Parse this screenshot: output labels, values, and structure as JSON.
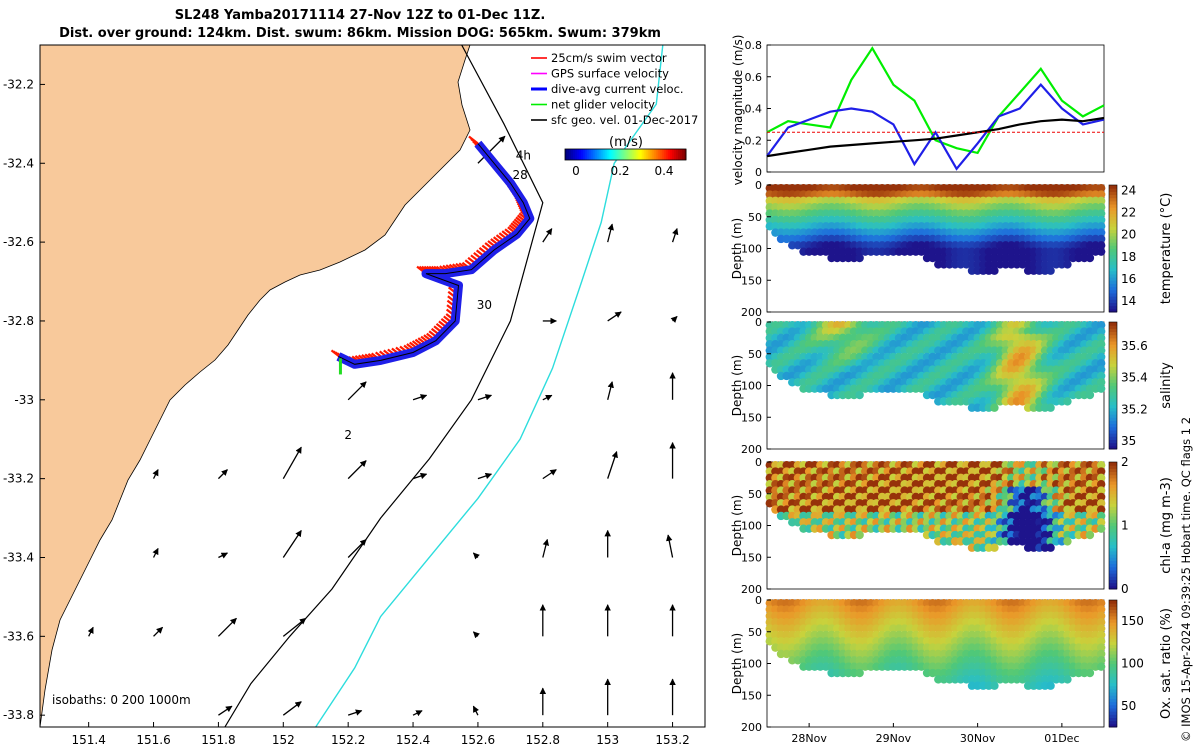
{
  "title": {
    "line1": "SL248 Yamba20171114 27-Nov 12Z to 01-Dec 11Z.",
    "line2": "Dist. over ground: 124km. Dist. swum: 86km. Mission DOG: 565km. Swum: 379km"
  },
  "credit": "© IMOS 15-Apr-2024 09:39:25 Hobart time. QC flags 1  2",
  "colors": {
    "land": "#f8c99b",
    "ocean": "#ffffff",
    "coast": "#000000",
    "track_red": "#ff1a00",
    "track_blue": "#1f1fe8",
    "glider_green": "#22dd22",
    "isobath_200": "#000000",
    "isobath_1000": "#2ddddd"
  },
  "chart_data": [
    {
      "type": "map",
      "xlim": [
        151.25,
        153.3
      ],
      "ylim": [
        -33.83,
        -32.1
      ],
      "x_ticks": [
        "151.4",
        "151.6",
        "151.8",
        "152",
        "152.2",
        "152.4",
        "152.6",
        "152.8",
        "153",
        "153.2"
      ],
      "x_tick_values": [
        151.4,
        151.6,
        151.8,
        152.0,
        152.2,
        152.4,
        152.6,
        152.8,
        153.0,
        153.2
      ],
      "y_ticks": [
        "-32.2",
        "-32.4",
        "-32.6",
        "-32.8",
        "-33",
        "-33.2",
        "-33.4",
        "-33.6",
        "-33.8"
      ],
      "y_tick_values": [
        -32.2,
        -32.4,
        -32.6,
        -32.8,
        -33.0,
        -33.2,
        -33.4,
        -33.6,
        -33.8
      ],
      "legend": [
        {
          "label": "25cm/s swim vector",
          "color": "#ff0000"
        },
        {
          "label": "GPS surface velocity",
          "color": "#ff00ff"
        },
        {
          "label": "dive-avg current veloc.",
          "color": "#0000ff"
        },
        {
          "label": "net glider velocity",
          "color": "#00ee00"
        },
        {
          "label": "sfc geo. vel. 01-Dec-2017",
          "color": "#000000"
        }
      ],
      "legend_placement": "top-right",
      "colorbar": {
        "label": "(m/s)",
        "ticks": [
          "0",
          "0.2",
          "0.4"
        ],
        "tick_values": [
          0,
          0.2,
          0.4
        ],
        "range": [
          -0.05,
          0.5
        ]
      },
      "isobaths_label": "isobaths: 0   200  1000m",
      "annotations": [
        {
          "text": "4h",
          "lon": 152.74,
          "lat": -32.39
        },
        {
          "text": "28",
          "lon": 152.73,
          "lat": -32.44
        },
        {
          "text": "30",
          "lon": 152.62,
          "lat": -32.77
        },
        {
          "text": "2",
          "lon": 152.2,
          "lat": -33.1
        }
      ],
      "glider_track": [
        [
          152.6,
          -32.35
        ],
        [
          152.65,
          -32.4
        ],
        [
          152.7,
          -32.45
        ],
        [
          152.74,
          -32.5
        ],
        [
          152.76,
          -32.54
        ],
        [
          152.72,
          -32.58
        ],
        [
          152.65,
          -32.62
        ],
        [
          152.58,
          -32.67
        ],
        [
          152.5,
          -32.68
        ],
        [
          152.44,
          -32.68
        ],
        [
          152.54,
          -32.71
        ],
        [
          152.53,
          -32.8
        ],
        [
          152.47,
          -32.85
        ],
        [
          152.4,
          -32.88
        ],
        [
          152.3,
          -32.9
        ],
        [
          152.22,
          -32.91
        ],
        [
          152.17,
          -32.89
        ]
      ],
      "geostrophic_vectors": [
        {
          "lon": 152.6,
          "lat": -32.4,
          "u": 0.3,
          "v": 0.3
        },
        {
          "lon": 152.8,
          "lat": -32.6,
          "u": 0.1,
          "v": 0.15
        },
        {
          "lon": 153.0,
          "lat": -32.6,
          "u": 0.05,
          "v": 0.2
        },
        {
          "lon": 153.2,
          "lat": -32.6,
          "u": 0.05,
          "v": 0.15
        },
        {
          "lon": 152.8,
          "lat": -32.8,
          "u": 0.15,
          "v": 0.0
        },
        {
          "lon": 153.0,
          "lat": -32.8,
          "u": 0.15,
          "v": 0.1
        },
        {
          "lon": 153.2,
          "lat": -32.8,
          "u": 0.05,
          "v": 0.05
        },
        {
          "lon": 152.2,
          "lat": -33.0,
          "u": 0.2,
          "v": 0.2
        },
        {
          "lon": 152.4,
          "lat": -33.0,
          "u": 0.15,
          "v": 0.05
        },
        {
          "lon": 152.6,
          "lat": -33.0,
          "u": 0.15,
          "v": 0.05
        },
        {
          "lon": 152.8,
          "lat": -33.0,
          "u": 0.1,
          "v": 0.05
        },
        {
          "lon": 153.0,
          "lat": -33.0,
          "u": 0.05,
          "v": 0.2
        },
        {
          "lon": 153.2,
          "lat": -33.0,
          "u": 0.0,
          "v": 0.3
        },
        {
          "lon": 151.6,
          "lat": -33.2,
          "u": 0.05,
          "v": 0.1
        },
        {
          "lon": 151.8,
          "lat": -33.2,
          "u": 0.1,
          "v": 0.1
        },
        {
          "lon": 152.0,
          "lat": -33.2,
          "u": 0.2,
          "v": 0.35
        },
        {
          "lon": 152.2,
          "lat": -33.2,
          "u": 0.2,
          "v": 0.2
        },
        {
          "lon": 152.4,
          "lat": -33.2,
          "u": 0.15,
          "v": 0.05
        },
        {
          "lon": 152.6,
          "lat": -33.2,
          "u": 0.15,
          "v": 0.05
        },
        {
          "lon": 152.8,
          "lat": -33.2,
          "u": 0.15,
          "v": 0.1
        },
        {
          "lon": 153.0,
          "lat": -33.2,
          "u": 0.1,
          "v": 0.3
        },
        {
          "lon": 153.2,
          "lat": -33.2,
          "u": 0.0,
          "v": 0.4
        },
        {
          "lon": 151.6,
          "lat": -33.4,
          "u": 0.05,
          "v": 0.1
        },
        {
          "lon": 151.8,
          "lat": -33.4,
          "u": 0.1,
          "v": 0.05
        },
        {
          "lon": 152.0,
          "lat": -33.4,
          "u": 0.2,
          "v": 0.3
        },
        {
          "lon": 152.2,
          "lat": -33.4,
          "u": 0.2,
          "v": 0.2
        },
        {
          "lon": 152.6,
          "lat": -33.4,
          "u": -0.05,
          "v": 0.05
        },
        {
          "lon": 152.8,
          "lat": -33.4,
          "u": 0.05,
          "v": 0.2
        },
        {
          "lon": 153.0,
          "lat": -33.4,
          "u": 0.0,
          "v": 0.3
        },
        {
          "lon": 153.2,
          "lat": -33.4,
          "u": -0.05,
          "v": 0.25
        },
        {
          "lon": 151.4,
          "lat": -33.6,
          "u": 0.05,
          "v": 0.1
        },
        {
          "lon": 151.6,
          "lat": -33.6,
          "u": 0.1,
          "v": 0.1
        },
        {
          "lon": 151.8,
          "lat": -33.6,
          "u": 0.2,
          "v": 0.2
        },
        {
          "lon": 152.0,
          "lat": -33.6,
          "u": 0.25,
          "v": 0.2
        },
        {
          "lon": 152.6,
          "lat": -33.6,
          "u": -0.05,
          "v": 0.05
        },
        {
          "lon": 152.8,
          "lat": -33.6,
          "u": 0.0,
          "v": 0.35
        },
        {
          "lon": 153.0,
          "lat": -33.6,
          "u": 0.0,
          "v": 0.35
        },
        {
          "lon": 153.2,
          "lat": -33.6,
          "u": 0.0,
          "v": 0.35
        },
        {
          "lon": 151.8,
          "lat": -33.8,
          "u": 0.15,
          "v": 0.1
        },
        {
          "lon": 152.0,
          "lat": -33.8,
          "u": 0.2,
          "v": 0.15
        },
        {
          "lon": 152.2,
          "lat": -33.8,
          "u": 0.15,
          "v": 0.05
        },
        {
          "lon": 152.4,
          "lat": -33.8,
          "u": 0.1,
          "v": 0.05
        },
        {
          "lon": 152.6,
          "lat": -33.8,
          "u": -0.05,
          "v": 0.1
        },
        {
          "lon": 152.8,
          "lat": -33.8,
          "u": 0.0,
          "v": 0.3
        },
        {
          "lon": 153.0,
          "lat": -33.8,
          "u": 0.0,
          "v": 0.4
        },
        {
          "lon": 153.2,
          "lat": -33.8,
          "u": 0.0,
          "v": 0.4
        }
      ]
    },
    {
      "type": "line",
      "ylabel": "velocity magnitude (m/s)",
      "ylim": [
        0,
        0.8
      ],
      "y_ticks": [
        "0",
        "0.2",
        "0.4",
        "0.6",
        "0.8"
      ],
      "y_tick_values": [
        0,
        0.2,
        0.4,
        0.6,
        0.8
      ],
      "x_days": [
        0,
        0.25,
        0.5,
        0.75,
        1.0,
        1.25,
        1.5,
        1.75,
        2.0,
        2.25,
        2.5,
        2.75,
        3.0,
        3.25,
        3.5,
        3.75,
        4.0
      ],
      "series": [
        {
          "color": "#00ee00",
          "values": [
            0.25,
            0.32,
            0.3,
            0.28,
            0.58,
            0.78,
            0.55,
            0.45,
            0.2,
            0.15,
            0.12,
            0.35,
            0.5,
            0.65,
            0.45,
            0.35,
            0.42
          ]
        },
        {
          "color": "#1f1fe8",
          "values": [
            0.1,
            0.28,
            0.33,
            0.38,
            0.4,
            0.38,
            0.3,
            0.05,
            0.25,
            0.02,
            0.18,
            0.35,
            0.4,
            0.55,
            0.4,
            0.3,
            0.33
          ]
        },
        {
          "color": "#000000",
          "values": [
            0.1,
            0.12,
            0.14,
            0.16,
            0.17,
            0.18,
            0.19,
            0.2,
            0.21,
            0.23,
            0.25,
            0.27,
            0.3,
            0.32,
            0.33,
            0.32,
            0.34
          ]
        },
        {
          "color": "#ee0000",
          "values": [
            0.25,
            0.25,
            0.25,
            0.25,
            0.25,
            0.25,
            0.25,
            0.25,
            0.25,
            0.25,
            0.25,
            0.25,
            0.25,
            0.25,
            0.25,
            0.25,
            0.25
          ]
        }
      ]
    },
    {
      "type": "heatmap",
      "ylabel": "Depth (m)",
      "colorbar_label": "temperature (°C)",
      "clim": [
        13,
        24.5
      ],
      "colorbar_ticks": [
        "14",
        "16",
        "18",
        "20",
        "22",
        "24"
      ],
      "colorbar_tick_values": [
        14,
        16,
        18,
        20,
        22,
        24
      ],
      "y_ticks": [
        "0",
        "50",
        "100",
        "150",
        "200"
      ],
      "y_tick_values": [
        0,
        50,
        100,
        150,
        200
      ]
    },
    {
      "type": "heatmap",
      "ylabel": "Depth (m)",
      "colorbar_label": "salinity",
      "clim": [
        34.95,
        35.75
      ],
      "colorbar_ticks": [
        "35",
        "35.2",
        "35.4",
        "35.6"
      ],
      "colorbar_tick_values": [
        35,
        35.2,
        35.4,
        35.6
      ],
      "y_ticks": [
        "0",
        "50",
        "100",
        "150",
        "200"
      ],
      "y_tick_values": [
        0,
        50,
        100,
        150,
        200
      ]
    },
    {
      "type": "heatmap",
      "ylabel": "Depth (m)",
      "colorbar_label": "chl-a (mg m-3)",
      "clim": [
        0,
        2
      ],
      "colorbar_ticks": [
        "0",
        "1",
        "2"
      ],
      "colorbar_tick_values": [
        0,
        1,
        2
      ],
      "y_ticks": [
        "0",
        "50",
        "100",
        "150",
        "200"
      ],
      "y_tick_values": [
        0,
        50,
        100,
        150,
        200
      ]
    },
    {
      "type": "heatmap",
      "ylabel": "Depth (m)",
      "colorbar_label": "Ox. sat. ratio (%)",
      "clim": [
        25,
        175
      ],
      "colorbar_ticks": [
        "50",
        "100",
        "150"
      ],
      "colorbar_tick_values": [
        50,
        100,
        150
      ],
      "y_ticks": [
        "0",
        "50",
        "100",
        "150",
        "200"
      ],
      "y_tick_values": [
        0,
        50,
        100,
        150,
        200
      ],
      "x_ticks": [
        "28Nov",
        "29Nov",
        "30Nov",
        "01Dec"
      ],
      "x_tick_values": [
        0.5,
        1.5,
        2.5,
        3.5
      ]
    }
  ],
  "seafloor_depth": {
    "x_days": [
      0,
      0.25,
      0.5,
      0.75,
      1.0,
      1.25,
      1.5,
      1.75,
      2.0,
      2.25,
      2.5,
      2.75,
      3.0,
      3.25,
      3.5,
      3.75,
      4.0
    ],
    "depth": [
      70,
      95,
      110,
      115,
      120,
      110,
      115,
      110,
      125,
      130,
      138,
      135,
      132,
      140,
      130,
      120,
      110
    ]
  }
}
